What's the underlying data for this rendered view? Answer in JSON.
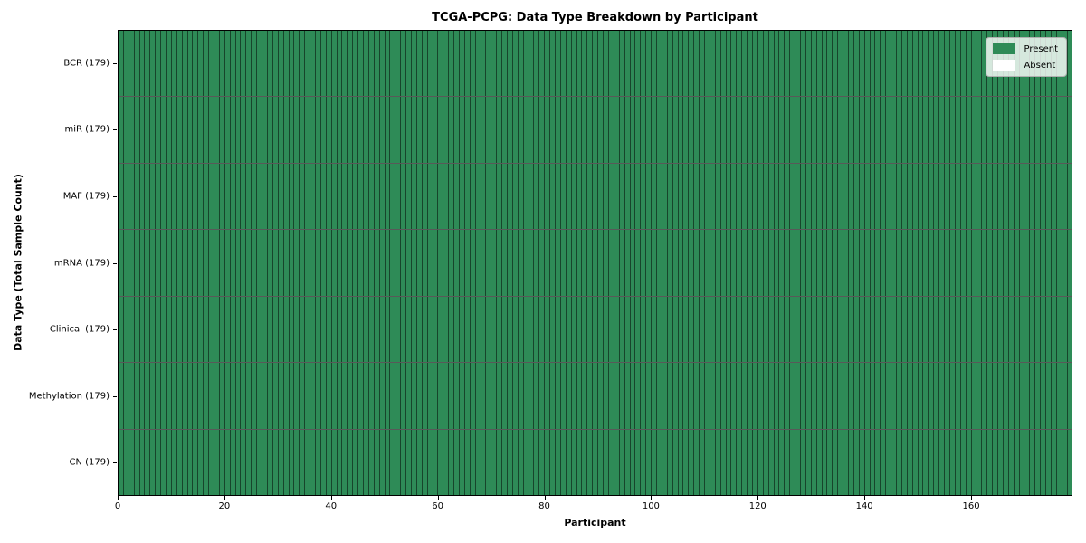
{
  "chart_data": {
    "type": "heatmap",
    "title": "TCGA-PCPG: Data Type Breakdown by Participant",
    "xlabel": "Participant",
    "ylabel": "Data Type (Total Sample Count)",
    "n_participants": 179,
    "xlim": [
      0,
      179
    ],
    "x_ticks": [
      0,
      20,
      40,
      60,
      80,
      100,
      120,
      140,
      160
    ],
    "rows": [
      {
        "label": "BCR (179)",
        "data_type": "BCR",
        "total": 179,
        "present": 179,
        "absent": 0
      },
      {
        "label": "miR (179)",
        "data_type": "miR",
        "total": 179,
        "present": 179,
        "absent": 0
      },
      {
        "label": "MAF (179)",
        "data_type": "MAF",
        "total": 179,
        "present": 179,
        "absent": 0
      },
      {
        "label": "mRNA (179)",
        "data_type": "mRNA",
        "total": 179,
        "present": 179,
        "absent": 0
      },
      {
        "label": "Clinical (179)",
        "data_type": "Clinical",
        "total": 179,
        "present": 179,
        "absent": 0
      },
      {
        "label": "Methylation (179)",
        "data_type": "Methylation",
        "total": 179,
        "present": 179,
        "absent": 0
      },
      {
        "label": "CN (179)",
        "data_type": "CN",
        "total": 179,
        "present": 179,
        "absent": 0
      }
    ],
    "legend": [
      {
        "label": "Present",
        "color": "#2e8b57"
      },
      {
        "label": "Absent",
        "color": "#ffffff"
      }
    ],
    "colors": {
      "present": "#2e8b57",
      "absent": "#ffffff",
      "grid_line": "rgba(0,0,0,0.5)",
      "spine": "#000000"
    },
    "legend_position": "upper right",
    "grid": true
  }
}
